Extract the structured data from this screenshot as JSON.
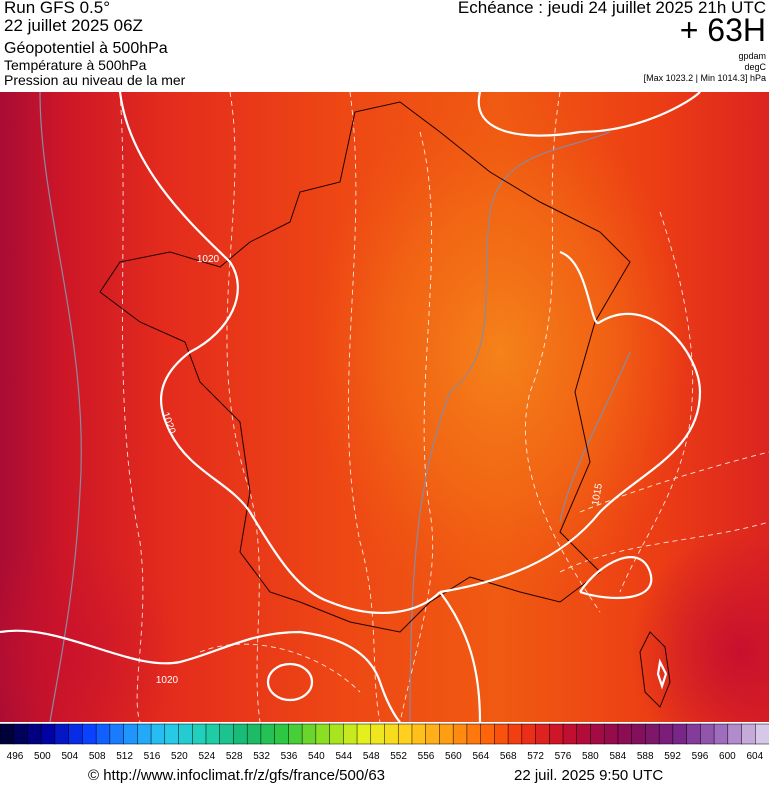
{
  "header": {
    "run": "Run GFS 0.5°",
    "date": "22 juillet 2025 06Z",
    "field1": "Géopotentiel à 500hPa",
    "field2": "Température à 500hPa",
    "field3": "Pression au niveau de la mer",
    "echeance": "Echéance : jeudi 24 juillet 2025 21h UTC",
    "offset": "+ 63H",
    "unit1": "gpdam",
    "unit2": "degC",
    "maxmin": "[Max 1023.2 | Min 1014.3] hPa"
  },
  "map": {
    "isobar_labels": [
      "1020",
      "1020",
      "1020",
      "1015"
    ]
  },
  "colorbar": {
    "labels": [
      496,
      500,
      504,
      508,
      512,
      516,
      520,
      524,
      528,
      532,
      536,
      540,
      544,
      548,
      552,
      556,
      560,
      564,
      568,
      572,
      576,
      580,
      584,
      588,
      592,
      596,
      600,
      604
    ]
  },
  "footer": {
    "url": "© http://www.infoclimat.fr/z/gfs/france/500/63",
    "time": "22 juil. 2025  9:50 UTC"
  }
}
